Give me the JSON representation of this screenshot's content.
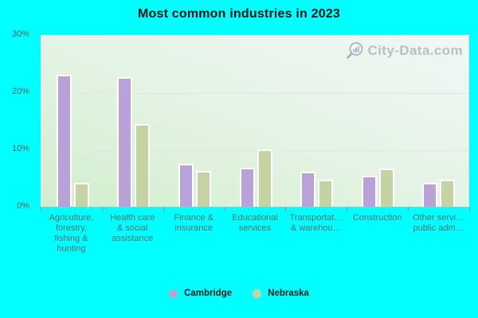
{
  "title": "Most common industries in 2023",
  "watermark": {
    "text": "City-Data.com"
  },
  "colors": {
    "background": "#00ffff",
    "cambridge_bar": "#b9a2d8",
    "nebraska_bar": "#c5d2a1",
    "bar_border": "#ffffff",
    "gridline": "#e7e1eb",
    "axis_line": "#a9bfc2",
    "tick_mark": "#7f9ea4",
    "y_label_text": "#565f5f",
    "x_label_text": "#56706e",
    "title_text": "#141414"
  },
  "y_axis": {
    "ticks": [
      "30%",
      "20%",
      "10%",
      "0%"
    ],
    "max": 30,
    "gridline_values": [
      20,
      10
    ]
  },
  "legend": [
    {
      "label": "Cambridge",
      "color": "#b9a2d8"
    },
    {
      "label": "Nebraska",
      "color": "#c5d2a1"
    }
  ],
  "chart_data": {
    "type": "bar",
    "title": "Most common industries in 2023",
    "categories": [
      "Agriculture, forestry, fishing & hunting",
      "Health care & social assistance",
      "Finance & insurance",
      "Educational services",
      "Transportat… & warehou…",
      "Construction",
      "Other servi… public adm…"
    ],
    "category_display_lines": [
      [
        "Agriculture,",
        "forestry,",
        "fishing &",
        "hunting"
      ],
      [
        "Health care",
        "& social",
        "assistance"
      ],
      [
        "Finance &",
        "insurance"
      ],
      [
        "Educational",
        "services"
      ],
      [
        "Transportat…",
        "& warehou…"
      ],
      [
        "Construction"
      ],
      [
        "Other servi…",
        "public adm…"
      ]
    ],
    "series": [
      {
        "name": "Cambridge",
        "color": "#b9a2d8",
        "values": [
          23.1,
          22.8,
          7.5,
          6.9,
          6.2,
          5.5,
          4.2
        ]
      },
      {
        "name": "Nebraska",
        "color": "#c5d2a1",
        "values": [
          4.2,
          14.5,
          6.3,
          10.0,
          4.8,
          6.7,
          4.7
        ]
      }
    ],
    "ylim": [
      0,
      30
    ],
    "xlabel": "",
    "ylabel": "",
    "grid": "horizontal",
    "legend_position": "bottom"
  }
}
